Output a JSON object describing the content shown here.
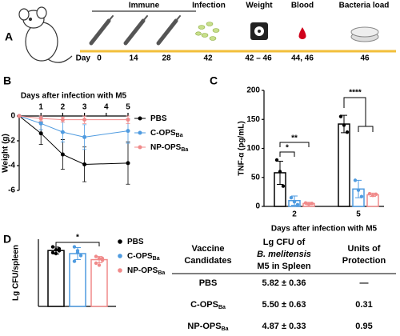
{
  "panel_labels": [
    "A",
    "B",
    "C",
    "D"
  ],
  "timeline": {
    "day_label": "Day",
    "stages": [
      {
        "label": "Immune",
        "days": [
          "0",
          "14",
          "28"
        ]
      },
      {
        "label": "Infection",
        "days": [
          "42"
        ]
      },
      {
        "label": "Weight",
        "days": [
          "42 – 46"
        ]
      },
      {
        "label": "Blood",
        "days": [
          "44, 46"
        ]
      },
      {
        "label": "Bacteria load",
        "days": [
          "46"
        ]
      }
    ]
  },
  "chart_data": [
    {
      "type": "line",
      "xlabel": "Days after infection with M5",
      "ylabel": "Weight (g)",
      "x": [
        0,
        1,
        2,
        3,
        5
      ],
      "xlim": [
        0,
        5
      ],
      "xticks": [
        1,
        2,
        3,
        4,
        5
      ],
      "ylim": [
        -6,
        0
      ],
      "yticks": [
        0,
        -2,
        -4,
        -6
      ],
      "series": [
        {
          "name": "PBS",
          "color": "#000000",
          "values": [
            0,
            -1.4,
            -3.1,
            -3.9,
            -3.8
          ],
          "errors": [
            0,
            0.9,
            1.2,
            1.4,
            1.7
          ]
        },
        {
          "name": "C-OPS",
          "name_sub": "Ba",
          "color": "#4f9be0",
          "values": [
            0,
            -0.6,
            -1.3,
            -1.7,
            -1.2
          ],
          "errors": [
            0,
            0.5,
            0.8,
            1.0,
            1.0
          ]
        },
        {
          "name": "NP-OPS",
          "name_sub": "Ba",
          "color": "#f08a8a",
          "values": [
            0,
            -0.2,
            -0.3,
            -0.3,
            -0.3
          ],
          "errors": [
            0,
            0.2,
            0.2,
            0.3,
            0.3
          ]
        }
      ]
    },
    {
      "type": "bar",
      "xlabel": "Days after infection with M5",
      "ylabel": "TNF-α (pg/mL)",
      "categories": [
        "2",
        "5"
      ],
      "ylim": [
        0,
        200
      ],
      "yticks": [
        0,
        50,
        100,
        150,
        200
      ],
      "series": [
        {
          "color": "#000000",
          "values": [
            58,
            142
          ],
          "errors": [
            20,
            15
          ],
          "points": [
            [
              80,
              60,
              35
            ],
            [
              155,
              140,
              128
            ]
          ]
        },
        {
          "color": "#4f9be0",
          "values": [
            10,
            30
          ],
          "errors": [
            8,
            15
          ],
          "points": [
            [
              15,
              8,
              3
            ],
            [
              45,
              28,
              17
            ]
          ]
        },
        {
          "color": "#f08a8a",
          "values": [
            5,
            20
          ],
          "errors": [
            2,
            3
          ],
          "points": [
            [
              6,
              4,
              5
            ],
            [
              22,
              19,
              21
            ]
          ]
        }
      ],
      "annotations": [
        "*",
        "**",
        "****"
      ]
    },
    {
      "type": "bar",
      "ylabel": "Lg CFU/spleen",
      "ylim": [
        0,
        7
      ],
      "series": [
        {
          "name": "PBS",
          "color": "#000000",
          "values": [
            5.82
          ],
          "errors": [
            0.36
          ],
          "points": [
            [
              6.2,
              5.9,
              5.8,
              5.6,
              5.5,
              6.0
            ]
          ]
        },
        {
          "name": "C-OPS",
          "name_sub": "Ba",
          "color": "#4f9be0",
          "values": [
            5.5
          ],
          "errors": [
            0.63
          ],
          "points": [
            [
              6.2,
              5.8,
              5.3,
              4.7,
              5.6
            ]
          ]
        },
        {
          "name": "NP-OPS",
          "name_sub": "Ba",
          "color": "#f08a8a",
          "values": [
            4.87
          ],
          "errors": [
            0.33
          ],
          "points": [
            [
              5.2,
              5.0,
              4.8,
              4.5,
              4.3,
              5.0
            ]
          ]
        }
      ],
      "annotations": [
        "*"
      ]
    }
  ],
  "table": {
    "header": [
      [
        "Vaccine",
        "Candidates"
      ],
      [
        "Lg CFU of",
        "B. melitensis",
        "M5 in Spleen"
      ],
      [
        "Units of",
        "Protection"
      ]
    ],
    "rows": [
      {
        "name": "PBS",
        "cfu": "5.82 ± 0.36",
        "protection": "—"
      },
      {
        "name": "C-OPS",
        "name_sub": "Ba",
        "cfu": "5.50 ± 0.63",
        "protection": "0.31"
      },
      {
        "name": "NP-OPS",
        "name_sub": "Ba",
        "cfu": "4.87 ± 0.33",
        "protection": "0.95"
      }
    ]
  }
}
